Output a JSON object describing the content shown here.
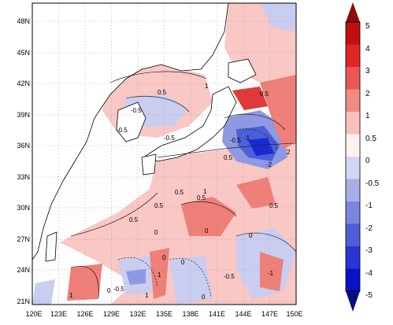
{
  "map": {
    "lat_labels": [
      "48N",
      "45N",
      "42N",
      "39N",
      "36N",
      "33N",
      "30N",
      "27N",
      "24N",
      "21N"
    ],
    "lon_labels": [
      "120E",
      "123E",
      "126E",
      "129E",
      "132E",
      "135E",
      "138E",
      "141E",
      "144E",
      "147E",
      "150E"
    ],
    "contour_labels": [
      "-0.5",
      "0.5",
      "-0.5",
      "1",
      "-0.5",
      "0.5",
      "-1",
      "-0.5",
      "-2",
      "2",
      "0.5",
      "0.5",
      "1",
      "0.5",
      "0.5",
      "0",
      "0.5",
      "0.5",
      "0",
      "0",
      "0",
      "0",
      "-0.5",
      "1",
      "1",
      "-0.5",
      "0",
      "0",
      "-1",
      "1"
    ],
    "colors": {
      "land": "#ffffff",
      "neutral": "#fdfdfd",
      "pos_05": "#f9c7c4",
      "pos_1": "#ee7f79",
      "pos_2": "#e0393a",
      "pos_3": "#c51b1b",
      "neg_05": "#c9cdf0",
      "neg_1": "#8f98e2",
      "neg_2": "#4c5fd9",
      "neg_3": "#1a2ad0"
    }
  },
  "colorbar": {
    "labels": [
      "5",
      "4",
      "3",
      "2",
      "1",
      "0.5",
      "0",
      "-0.5",
      "-1",
      "-2",
      "-3",
      "-4",
      "-5"
    ],
    "colors": [
      "#8e0b0b",
      "#c20e0e",
      "#e02525",
      "#ec5555",
      "#f28a84",
      "#f8c1bd",
      "#fdf2f1",
      "#d3d6f3",
      "#a7aee8",
      "#7a85de",
      "#4f5ed7",
      "#2a35d2",
      "#0a12c9",
      "#07107a"
    ]
  }
}
